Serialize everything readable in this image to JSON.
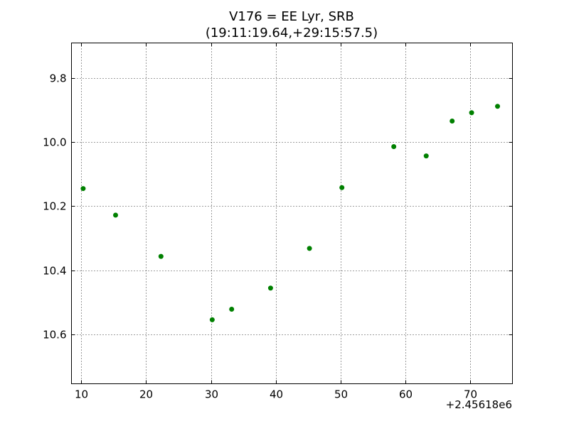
{
  "chart_data": {
    "type": "scatter",
    "title_line1": "V176 = EE Lyr, SRB",
    "title_line2": "(19:11:19.64,+29:15:57.5)",
    "xlabel": "",
    "ylabel": "",
    "x_offset_label": "+2.45618e6",
    "x_offset": 2456180,
    "xlim": [
      8.5,
      76.5
    ],
    "ylim": [
      10.755,
      9.69
    ],
    "y_inverted": true,
    "grid": true,
    "marker_color": "#008000",
    "x_ticks": [
      10,
      20,
      30,
      40,
      50,
      60,
      70
    ],
    "x_tick_labels": [
      "10",
      "20",
      "30",
      "40",
      "50",
      "60",
      "70"
    ],
    "y_ticks": [
      9.8,
      10.0,
      10.2,
      10.4,
      10.6
    ],
    "y_tick_labels": [
      "9.8",
      "10.0",
      "10.2",
      "10.4",
      "10.6"
    ],
    "series": [
      {
        "x": [
          10.3,
          15.3,
          22.3,
          30.2,
          33.2,
          39.2,
          45.2,
          50.2,
          58.2,
          63.2,
          67.2,
          70.2,
          74.2
        ],
        "y": [
          10.145,
          10.228,
          10.357,
          10.555,
          10.522,
          10.456,
          10.332,
          10.142,
          10.014,
          10.043,
          9.934,
          9.908,
          9.888
        ]
      }
    ]
  }
}
